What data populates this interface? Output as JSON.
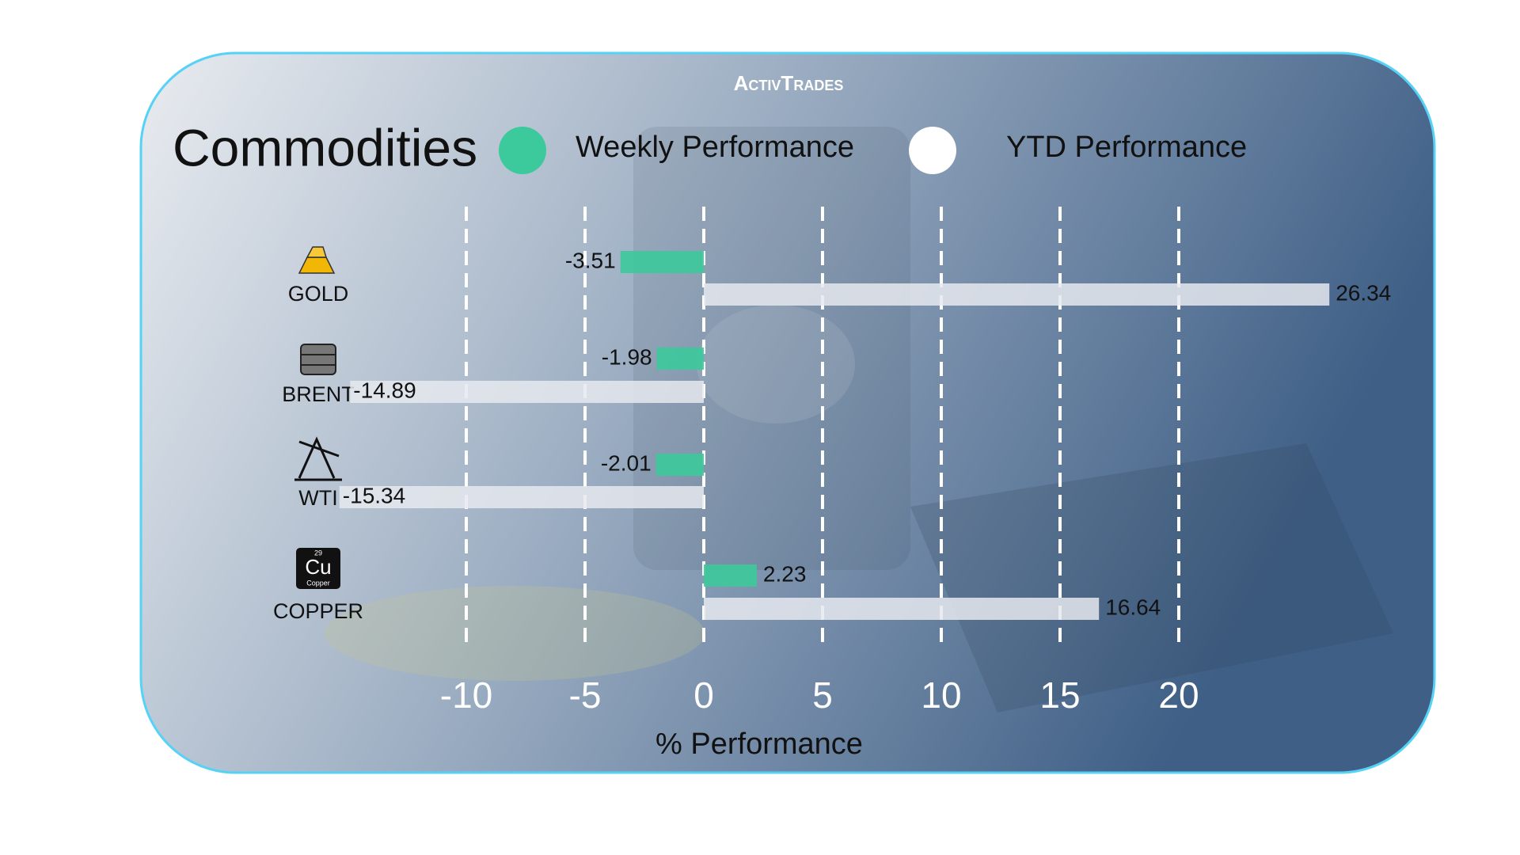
{
  "logo": "ActivTrades",
  "icon_text": {
    "number": "29",
    "symbol": "Cu",
    "name": "Copper"
  },
  "chart_data": {
    "type": "barh",
    "title": "Commodities",
    "x_label": "% Performance",
    "categories": [
      "GOLD",
      "BRENT",
      "WTI",
      "COPPER"
    ],
    "series": [
      {
        "name": "Weekly Performance",
        "color": "#3cc99b",
        "values": [
          -3.51,
          -1.98,
          -2.01,
          2.23
        ]
      },
      {
        "name": "YTD Performance",
        "color": "#e6e9ef",
        "values": [
          26.34,
          -14.89,
          -15.34,
          16.64
        ]
      }
    ],
    "xlim": [
      -16,
      27
    ],
    "xticks": [
      -10,
      -5,
      0,
      5,
      10,
      15,
      20
    ],
    "grid": true
  }
}
